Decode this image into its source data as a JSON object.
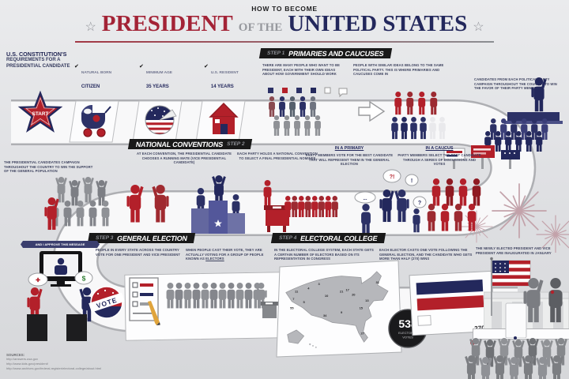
{
  "title": {
    "kicker": "HOW TO BECOME",
    "star": "☆",
    "word1": "PRESIDENT",
    "word2": "OF THE",
    "word3": "UNITED STATES"
  },
  "requirements": {
    "heading": "U.S. CONSTITUTION'S",
    "subheading": "REQUIREMENTS FOR A PRESIDENTIAL CANDIDATE",
    "start_label": "START",
    "check": "✔",
    "items": [
      {
        "line1": "NATURAL BORN",
        "line2": "CITIZEN",
        "icon": "baby-carriage-icon"
      },
      {
        "line1": "MINIMUM AGE",
        "line2": "35 YEARS",
        "icon": "birthday-cake-icon"
      },
      {
        "line1": "U.S. RESIDENT",
        "line2": "14 YEARS",
        "icon": "house-icon"
      }
    ]
  },
  "step1": {
    "step_label": "STEP 1",
    "title": "PRIMARIES AND CAUCUSES",
    "text1": "THERE ARE MANY PEOPLE WHO WANT TO BE PRESIDENT, EACH WITH THEIR OWN IDEAS ABOUT HOW GOVERNMENT SHOULD WORK",
    "text2": "PEOPLE WITH SIMILAR IDEAS BELONG TO THE SAME POLITICAL PARTY. THIS IS WHERE PRIMARIES AND CAUCUSES COME IN",
    "text3": "CANDIDATES FROM EACH POLITICAL PARTY CAMPAIGN THROUGHOUT THE COUNTRY TO WIN THE FAVOR OF THEIR PARTY MEMBERS"
  },
  "step2": {
    "step_label": "STEP 2",
    "title": "NATIONAL CONVENTIONS",
    "text_left": "THE PRESIDENTIAL CANDIDATES CAMPAIGN THROUGHOUT THE COUNTRY TO WIN THE SUPPORT OF THE GENERAL POPULATION",
    "text1": "AT EACH CONVENTION, THE PRESIDENTIAL CANDIDATE CHOOSES A RUNNING MATE (VICE PRESIDENTIAL CANDIDATE)",
    "text2": "EACH PARTY HOLDS A NATIONAL CONVENTION TO SELECT A FINAL PRESIDENTIAL NOMINEE",
    "primary_heading": "IN A PRIMARY",
    "primary_text": "PARTY MEMBERS VOTE FOR THE BEST CANDIDATE THAT WILL REPRESENT THEM IN THE GENERAL ELECTION",
    "caucus_heading": "IN A CAUCUS",
    "caucus_text": "PARTY MEMBERS SELECT THE BEST CANDIDATE THROUGH A SERIES OF DISCUSSIONS AND VOTES",
    "bubbles": [
      "...",
      "?!",
      "!",
      "?"
    ]
  },
  "step3": {
    "step_label": "STEP 3",
    "title": "GENERAL ELECTION",
    "text1": "PEOPLE IN EVERY STATE ACROSS THE COUNTRY VOTE FOR ONE PRESIDENT AND VICE PRESIDENT",
    "text2": "WHEN PEOPLE CAST THEIR VOTE, THEY ARE ACTUALLY VOTING FOR A GROUP OF PEOPLE KNOWN AS ",
    "text2_emph": "ELECTORS",
    "ribbon": "AND I APPROVE THIS MESSAGE",
    "vote_badge": "VOTE",
    "debate_bubbles": [
      "✚",
      "$"
    ]
  },
  "step4": {
    "step_label": "STEP 4",
    "title": "ELECTORAL COLLEGE",
    "text1": "IN THE ELECTORAL COLLEGE SYSTEM, EACH STATE GETS A CERTAIN NUMBER OF ELECTORS BASED ON ITS REPRESENTATION IN CONGRESS",
    "text2": "EACH ELECTOR CASTS ONE VOTE FOLLOWING THE GENERAL ELECTION, AND THE CANDIDATE WHO GETS MORE THAN HALF (270) WINS",
    "text3": "THE NEWLY ELECTED PRESIDENT AND VICE PRESIDENT ARE INAUGURATED IN JANUARY",
    "total_votes": "538",
    "total_votes_label1": "ELECTORAL",
    "total_votes_label2": "VOTES",
    "majority": "270",
    "map_numbers": [
      "11",
      "7",
      "55",
      "5",
      "4",
      "3",
      "34",
      "10",
      "21",
      "20",
      "31",
      "27",
      "15",
      "17",
      "13",
      "9"
    ]
  },
  "sources": {
    "heading": "SOURCES:",
    "urls": [
      "http://answers.usa.gov",
      "http://www.kids.gov/president/",
      "http://www.archives.gov/federal-register/electoral-college/about.html"
    ]
  },
  "colors": {
    "red": "#b3202a",
    "navy": "#23285c",
    "gray": "#8f9196",
    "header_bg": "#191919"
  }
}
